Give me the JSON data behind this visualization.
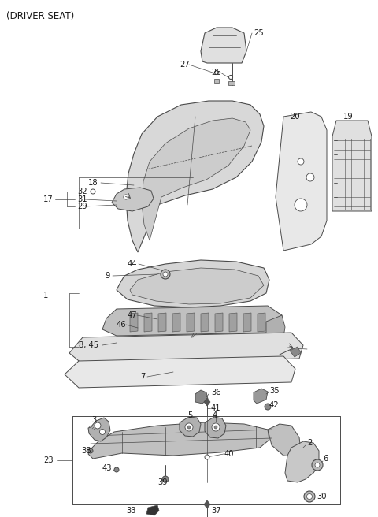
{
  "title": "(DRIVER SEAT)",
  "bg_color": "#ffffff",
  "line_color": "#4a4a4a",
  "label_color": "#1a1a1a",
  "title_fontsize": 8.5,
  "label_fontsize": 7.2,
  "figsize": [
    4.8,
    6.56
  ],
  "dpi": 100
}
